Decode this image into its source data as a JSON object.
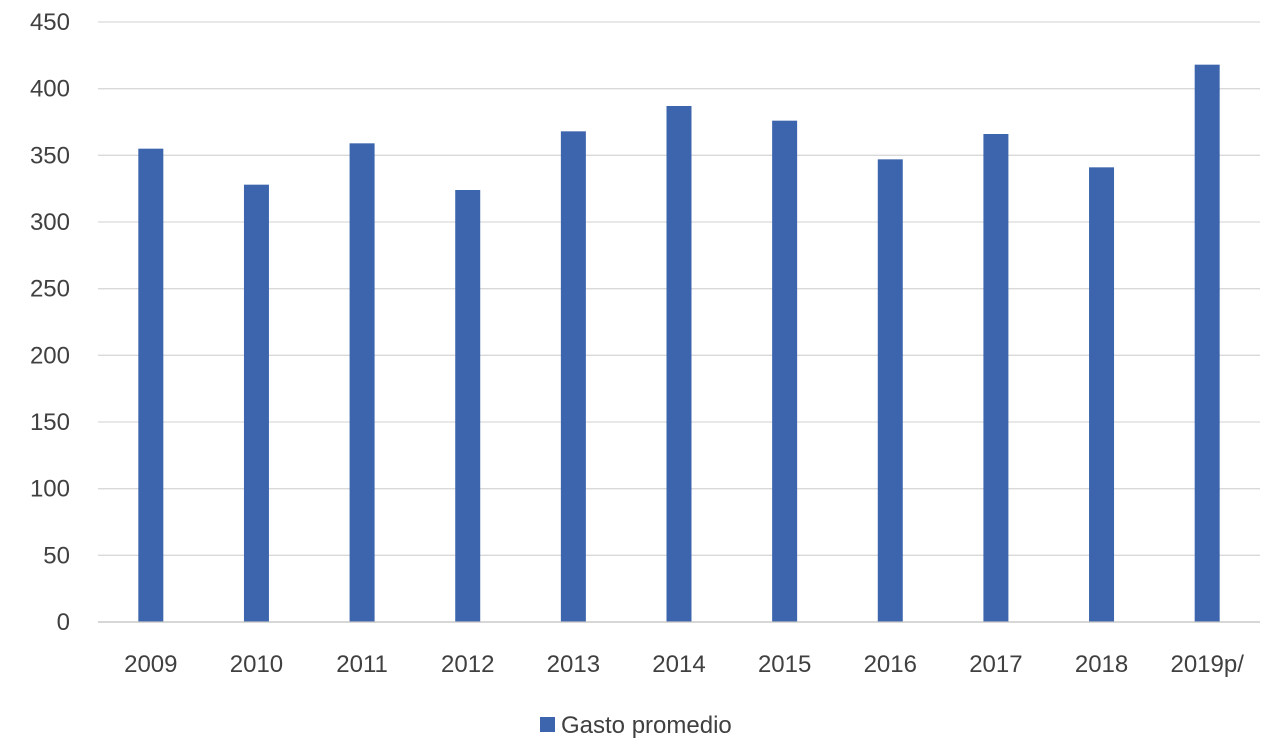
{
  "chart_data": {
    "type": "bar",
    "categories": [
      "2009",
      "2010",
      "2011",
      "2012",
      "2013",
      "2014",
      "2015",
      "2016",
      "2017",
      "2018",
      "2019p/"
    ],
    "series": [
      {
        "name": "Gasto promedio",
        "values": [
          355,
          328,
          359,
          324,
          368,
          387,
          376,
          347,
          366,
          341,
          418
        ],
        "color": "#3c65ad"
      }
    ],
    "title": "",
    "xlabel": "",
    "ylabel": "",
    "ylim": [
      0,
      450
    ],
    "yticks": [
      "0",
      "50",
      "100",
      "150",
      "200",
      "250",
      "300",
      "350",
      "400",
      "450"
    ],
    "grid": true,
    "legend_position": "bottom-center"
  }
}
